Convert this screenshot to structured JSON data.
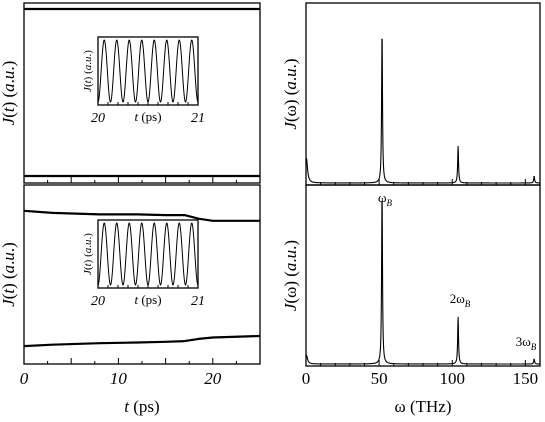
{
  "chart_data": [
    {
      "id": "time-top",
      "type": "line",
      "ylabel": "J(t) (a.u.)",
      "xlim": [
        0,
        25
      ],
      "series": [
        {
          "x": [
            0,
            25
          ],
          "y": [
            1.0,
            1.0
          ]
        },
        {
          "x": [
            0,
            25
          ],
          "y": [
            0.0,
            0.0
          ]
        }
      ],
      "inset": {
        "ylabel": "J(t) (a.u.)",
        "xlabel": "t (ps)",
        "xticks": [
          "20",
          "21"
        ],
        "xlim": [
          20,
          21
        ],
        "cycles": 8
      }
    },
    {
      "id": "time-bottom",
      "type": "line",
      "ylabel": "J(t) (a.u.)",
      "xlabel": "t (ps)",
      "xlim": [
        0,
        25
      ],
      "xticks": [
        "0",
        "10",
        "20"
      ],
      "xtick_values": [
        0,
        10,
        20
      ],
      "series": [
        {
          "x": [
            0,
            3,
            8,
            12,
            15,
            17,
            18.5,
            20,
            25
          ],
          "y": [
            0.96,
            0.945,
            0.935,
            0.935,
            0.93,
            0.93,
            0.905,
            0.89,
            0.89
          ]
        },
        {
          "x": [
            0,
            3,
            8,
            12,
            15,
            17,
            18.5,
            20,
            25
          ],
          "y": [
            0.02,
            0.03,
            0.04,
            0.045,
            0.05,
            0.055,
            0.07,
            0.08,
            0.09
          ]
        }
      ],
      "inset": {
        "ylabel": "J(t) (a.u.)",
        "xlabel": "t (ps)",
        "xticks": [
          "20",
          "21"
        ],
        "xlim": [
          20,
          21
        ],
        "cycles": 8
      }
    },
    {
      "id": "freq-top",
      "type": "line",
      "ylabel": "J(ω) (a.u.)",
      "xlim": [
        0,
        160
      ],
      "peaks": [
        {
          "x": 0.3,
          "height": 0.14
        },
        {
          "x": 52,
          "height": 0.88
        },
        {
          "x": 104,
          "height": 0.21
        },
        {
          "x": 156,
          "height": 0.04
        }
      ],
      "annotations": [
        {
          "text": "ω",
          "sub": "B",
          "x": 52
        }
      ]
    },
    {
      "id": "freq-bottom",
      "type": "line",
      "ylabel": "J(ω) (a.u.)",
      "xlabel": "ω (THz)",
      "xlim": [
        0,
        160
      ],
      "xticks": [
        "0",
        "50",
        "100",
        "150"
      ],
      "xtick_values": [
        0,
        50,
        100,
        150
      ],
      "peaks": [
        {
          "x": 0.3,
          "height": 0.05
        },
        {
          "x": 52,
          "height": 1.0
        },
        {
          "x": 104,
          "height": 0.27
        },
        {
          "x": 156,
          "height": 0.03
        }
      ],
      "annotations": [
        {
          "text": "2ω",
          "sub": "B",
          "x": 104
        },
        {
          "text": "3ω",
          "sub": "B",
          "x": 156
        }
      ]
    }
  ]
}
